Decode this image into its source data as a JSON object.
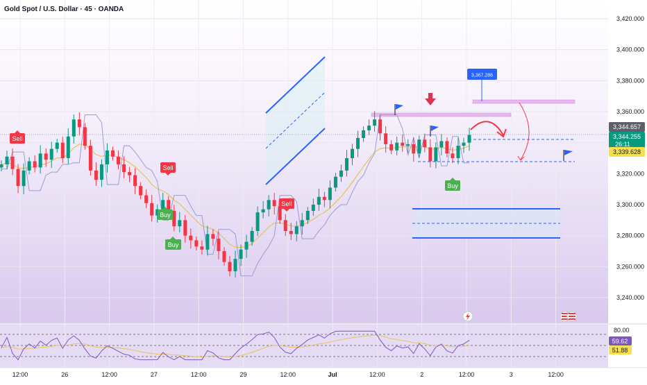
{
  "header": {
    "symbol_title": "Gold Spot / U.S. Dollar · 45 · OANDA"
  },
  "colors": {
    "up": "#089981",
    "down": "#f23645",
    "trail": "#9b9bd6",
    "ema": "#e8c35a",
    "blue": "#2962ff",
    "pink": "#e6b3f0",
    "rsi": "#7e57c2",
    "sell": "#f23645",
    "buy": "#4caf50"
  },
  "price_axis": {
    "ticks": [
      "3,420.000",
      "3,400.000",
      "3,380.000",
      "3,360.000",
      "3,340.000",
      "3,320.000",
      "3,300.000",
      "3,280.000",
      "3,260.000",
      "3,240.000"
    ]
  },
  "price_labels": {
    "last": "3,344.657",
    "current": "3,344.255",
    "countdown": "26:11",
    "ema": "3,339.628"
  },
  "annotations": {
    "callout_value": "3,367.286"
  },
  "time_axis": {
    "ticks": [
      "12:00",
      "26",
      "12:00",
      "27",
      "12:00",
      "29",
      "12:00",
      "Jul",
      "12:00",
      "2",
      "12:00",
      "3",
      "12:00"
    ]
  },
  "rsi": {
    "ticks": [
      "80.00"
    ],
    "value": "59.62",
    "ma_value": "51.88"
  },
  "signals": [
    {
      "label": "Sell",
      "type": "sell"
    },
    {
      "label": "Sell",
      "type": "sell"
    },
    {
      "label": "Buy",
      "type": "buy"
    },
    {
      "label": "Buy",
      "type": "buy"
    },
    {
      "label": "Sell",
      "type": "sell"
    },
    {
      "label": "Buy",
      "type": "buy"
    }
  ],
  "icons": [
    "flag-icon",
    "down-arrow-icon",
    "lightning-icon",
    "us-flag-icon"
  ],
  "chart_data": {
    "type": "line",
    "title": "Gold Spot / U.S. Dollar · 45 · OANDA",
    "ylim": [
      3235,
      3425
    ],
    "series": [
      {
        "values": [
          3326,
          3331,
          3323,
          3312,
          3322,
          3328,
          3324,
          3333,
          3329,
          3336,
          3340,
          3330,
          3344,
          3355,
          3350,
          3338,
          3322,
          3316,
          3326,
          3335,
          3331,
          3326,
          3321,
          3319,
          3312,
          3306,
          3301,
          3293,
          3297,
          3303,
          3296,
          3286,
          3290,
          3280,
          3277,
          3273,
          3271,
          3281,
          3278,
          3270,
          3263,
          3257,
          3265,
          3271,
          3276,
          3283,
          3295,
          3297,
          3303,
          3299,
          3290,
          3283,
          3281,
          3286,
          3290,
          3296,
          3300,
          3305,
          3303,
          3311,
          3318,
          3322,
          3330,
          3336,
          3343,
          3348,
          3351,
          3355,
          3346,
          3339,
          3335,
          3340,
          3338,
          3339,
          3333,
          3342,
          3337,
          3328,
          3337,
          3341,
          3333,
          3330,
          3338,
          3340,
          3345
        ]
      }
    ]
  }
}
